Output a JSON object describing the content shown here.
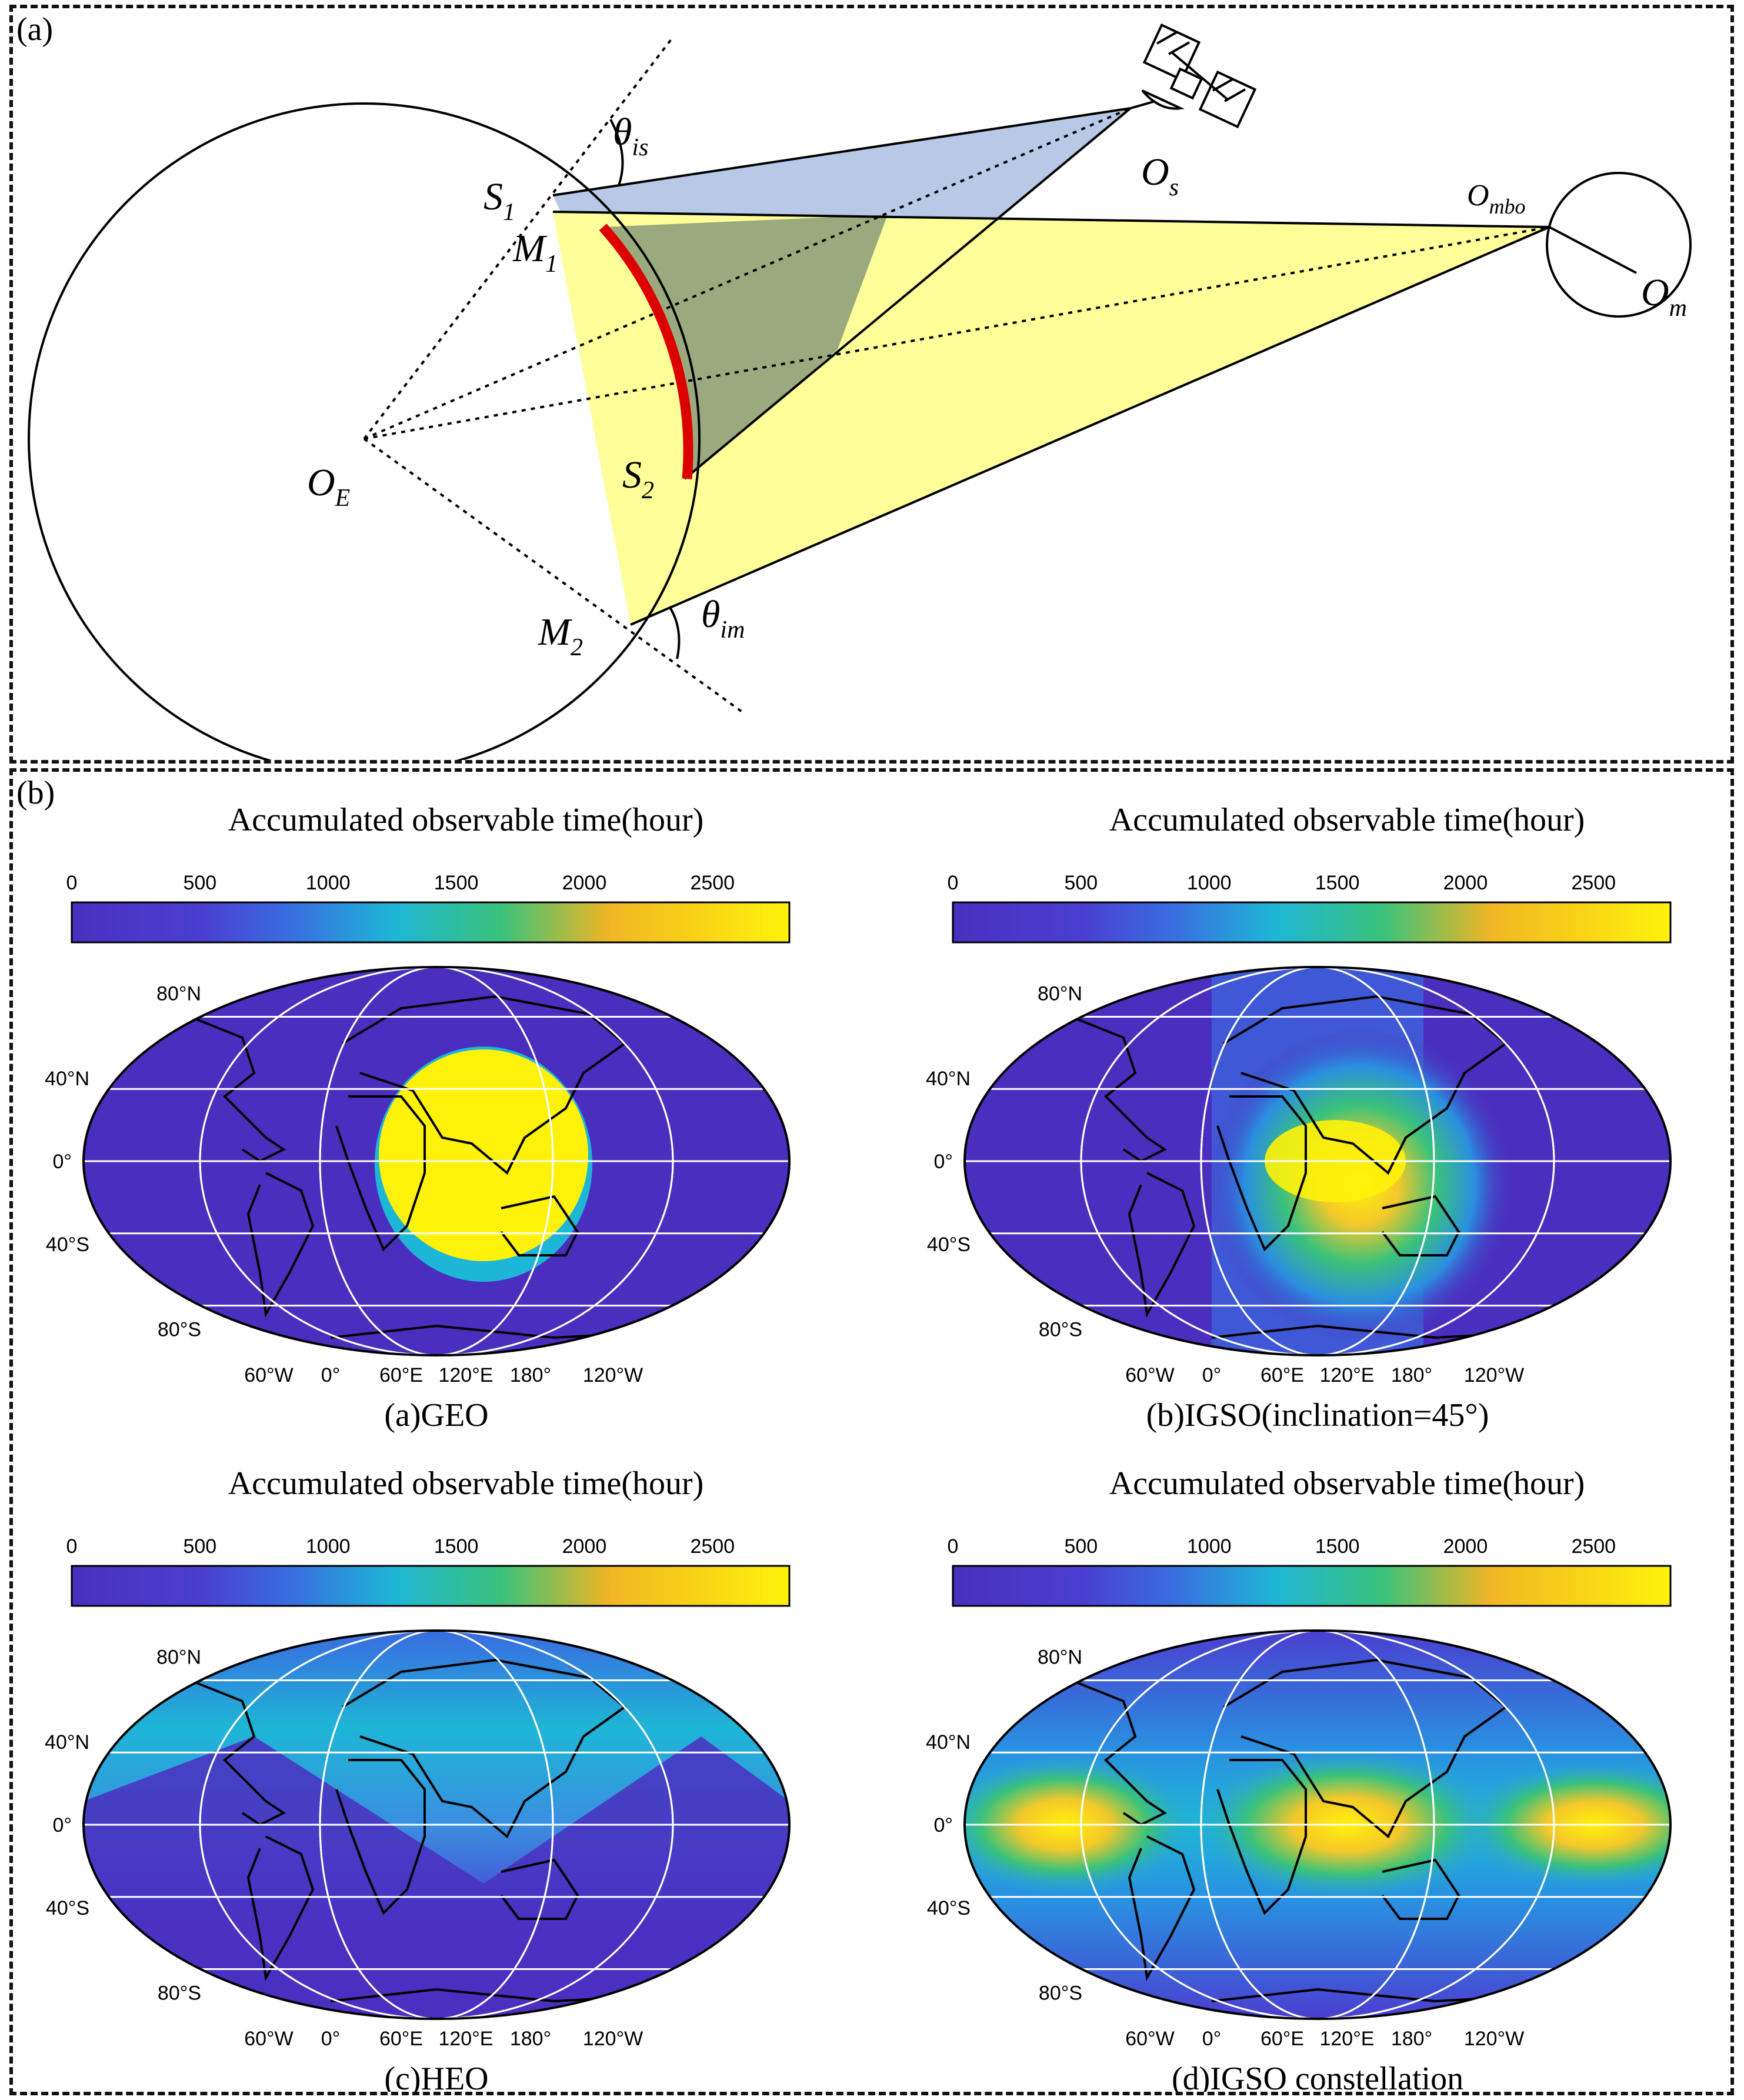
{
  "panel_a": {
    "label": "(a)",
    "labels": {
      "theta_is_base": "θ",
      "theta_is_sub": "is",
      "O_s_base": "O",
      "O_s_sub": "s",
      "O_mbo_base": "O",
      "O_mbo_sub": "mbo",
      "O_m_base": "O",
      "O_m_sub": "m",
      "S1_base": "S",
      "S1_sub": "1",
      "M1_base": "M",
      "M1_sub": "1",
      "O_E_base": "O",
      "O_E_sub": "E",
      "S2_base": "S",
      "S2_sub": "2",
      "M2_base": "M",
      "M2_sub": "2",
      "theta_im_base": "θ",
      "theta_im_sub": "im"
    },
    "colors": {
      "satellite_region": "#b7c9e6",
      "moon_region": "#ffff99",
      "overlap": "#9aaa7e",
      "arc": "#dd0000"
    }
  },
  "panel_b": {
    "label": "(b)",
    "colorbar": {
      "title": "Accumulated observable time(hour)",
      "ticks": [
        "0",
        "500",
        "1000",
        "1500",
        "2000",
        "2500"
      ],
      "tick_values": [
        0,
        500,
        1000,
        1500,
        2000,
        2500
      ],
      "max": 2800,
      "colors": [
        "#4a2fbf",
        "#3a6be0",
        "#1eb6d6",
        "#3bc27a",
        "#f1b624",
        "#fff20a"
      ]
    },
    "lat_labels": [
      "80°N",
      "40°N",
      "0°",
      "40°S",
      "80°S"
    ],
    "lon_labels": [
      "60°W",
      "0°",
      "60°E",
      "120°E",
      "180°",
      "120°W"
    ],
    "maps": [
      {
        "id": "geo",
        "caption": "(a)GEO"
      },
      {
        "id": "igso",
        "caption": "(b)IGSO(inclination=45°)"
      },
      {
        "id": "heo",
        "caption": "(c)HEO"
      },
      {
        "id": "constellation",
        "caption": "(d)IGSO constellation"
      }
    ]
  }
}
